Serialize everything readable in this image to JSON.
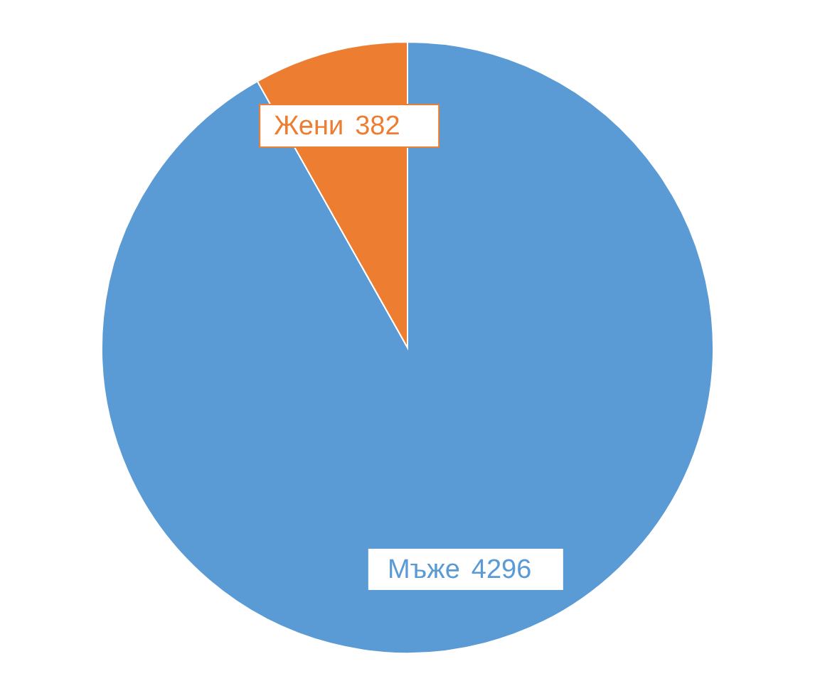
{
  "chart_data": {
    "type": "pie",
    "categories": [
      "Мъже",
      "Жени"
    ],
    "values": [
      4296,
      382
    ],
    "colors": [
      "#5b9bd5",
      "#ed7d31"
    ],
    "data_labels": true
  }
}
